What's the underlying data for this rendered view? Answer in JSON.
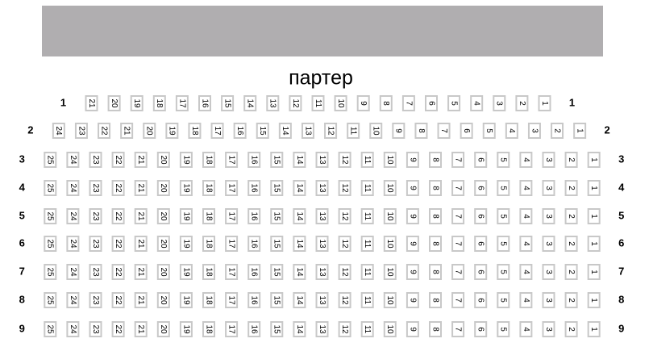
{
  "title": "партер",
  "rows": [
    {
      "label": "1",
      "seats": [
        21,
        20,
        19,
        18,
        17,
        16,
        15,
        14,
        13,
        12,
        11,
        10,
        9,
        8,
        7,
        6,
        5,
        4,
        3,
        2,
        1
      ]
    },
    {
      "label": "2",
      "seats": [
        24,
        23,
        22,
        21,
        20,
        19,
        18,
        17,
        16,
        15,
        14,
        13,
        12,
        11,
        10,
        9,
        8,
        7,
        6,
        5,
        4,
        3,
        2,
        1
      ]
    },
    {
      "label": "3",
      "seats": [
        25,
        24,
        23,
        22,
        21,
        20,
        19,
        18,
        17,
        16,
        15,
        14,
        13,
        12,
        11,
        10,
        9,
        8,
        7,
        6,
        5,
        4,
        3,
        2,
        1
      ]
    },
    {
      "label": "4",
      "seats": [
        25,
        24,
        23,
        22,
        21,
        20,
        19,
        18,
        17,
        16,
        15,
        14,
        13,
        12,
        11,
        10,
        9,
        8,
        7,
        6,
        5,
        4,
        3,
        2,
        1
      ]
    },
    {
      "label": "5",
      "seats": [
        25,
        24,
        23,
        22,
        21,
        20,
        19,
        18,
        17,
        16,
        15,
        14,
        13,
        12,
        11,
        10,
        9,
        8,
        7,
        6,
        5,
        4,
        3,
        2,
        1
      ]
    },
    {
      "label": "6",
      "seats": [
        25,
        24,
        23,
        22,
        21,
        20,
        19,
        18,
        17,
        16,
        15,
        14,
        13,
        12,
        11,
        10,
        9,
        8,
        7,
        6,
        5,
        4,
        3,
        2,
        1
      ]
    },
    {
      "label": "7",
      "seats": [
        25,
        24,
        23,
        22,
        21,
        20,
        19,
        18,
        17,
        16,
        15,
        14,
        13,
        12,
        11,
        10,
        9,
        8,
        7,
        6,
        5,
        4,
        3,
        2,
        1
      ]
    },
    {
      "label": "8",
      "seats": [
        25,
        24,
        23,
        22,
        21,
        20,
        19,
        18,
        17,
        16,
        15,
        14,
        13,
        12,
        11,
        10,
        9,
        8,
        7,
        6,
        5,
        4,
        3,
        2,
        1
      ]
    },
    {
      "label": "9",
      "seats": [
        25,
        24,
        23,
        22,
        21,
        20,
        19,
        18,
        17,
        16,
        15,
        14,
        13,
        12,
        11,
        10,
        9,
        8,
        7,
        6,
        5,
        4,
        3,
        2,
        1
      ]
    }
  ]
}
